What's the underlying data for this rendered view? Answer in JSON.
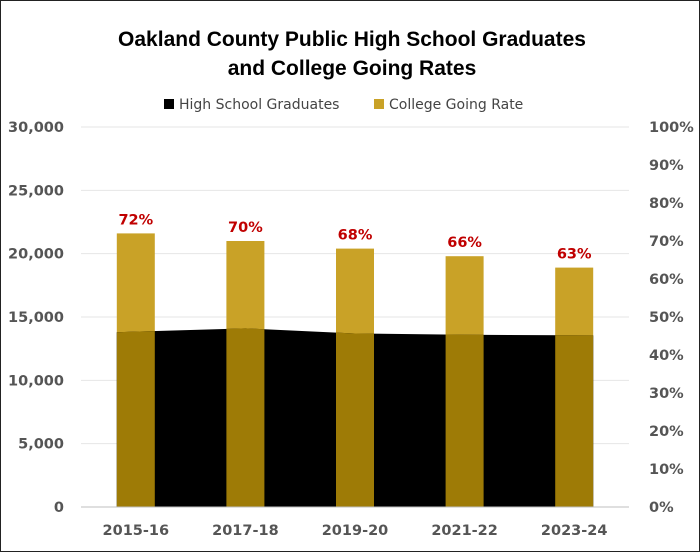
{
  "chart_data": {
    "type": "bar",
    "title_lines": [
      "Oakland County Public High School Graduates",
      "and College Going Rates"
    ],
    "categories": [
      "2015-16",
      "2017-18",
      "2019-20",
      "2021-22",
      "2023-24"
    ],
    "legend": [
      "High School Graduates",
      "College Going Rate"
    ],
    "series": [
      {
        "name": "High School Graduates",
        "type": "area",
        "axis": "left",
        "values": [
          13800,
          14100,
          13700,
          13600,
          13550
        ]
      },
      {
        "name": "College Going Rate",
        "type": "bar",
        "axis": "right",
        "values": [
          72,
          70,
          68,
          66,
          63
        ]
      }
    ],
    "data_labels": [
      "72%",
      "70%",
      "68%",
      "66%",
      "63%"
    ],
    "left_axis": {
      "min": 0,
      "max": 30000,
      "ticks": [
        "0",
        "5,000",
        "10,000",
        "15,000",
        "20,000",
        "25,000",
        "30,000"
      ]
    },
    "right_axis": {
      "min": 0,
      "max": 100,
      "ticks": [
        "0%",
        "10%",
        "20%",
        "30%",
        "40%",
        "50%",
        "60%",
        "70%",
        "80%",
        "90%",
        "100%"
      ]
    },
    "colors": {
      "graduates": "#000000",
      "rate": "#C9A227",
      "label": "#C00000",
      "grid": "#e6e6e6"
    }
  }
}
